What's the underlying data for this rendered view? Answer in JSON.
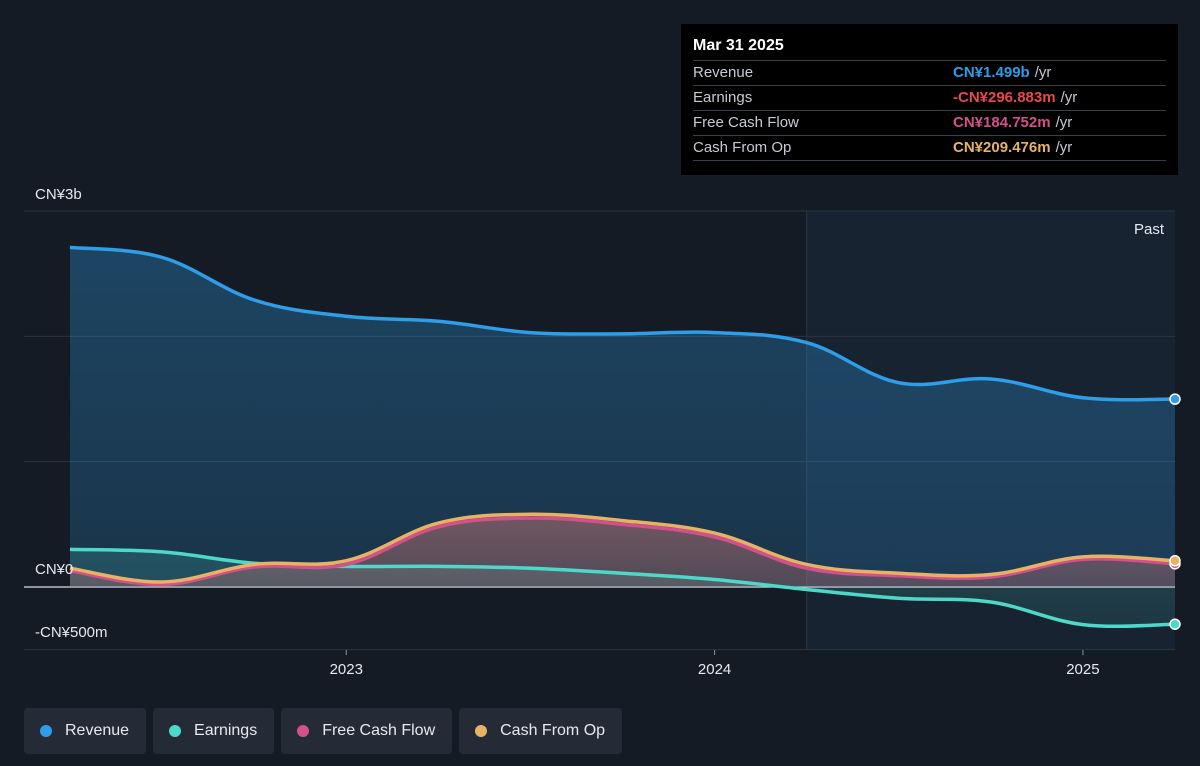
{
  "tooltip": {
    "date": "Mar 31 2025",
    "rows": [
      {
        "label": "Revenue",
        "value": "CN¥1.499b",
        "unit": "/yr",
        "color": "#2e9ee8"
      },
      {
        "label": "Earnings",
        "value": "-CN¥296.883m",
        "unit": "/yr",
        "color": "#e84a4a"
      },
      {
        "label": "Free Cash Flow",
        "value": "CN¥184.752m",
        "unit": "/yr",
        "color": "#d4508a"
      },
      {
        "label": "Cash From Op",
        "value": "CN¥209.476m",
        "unit": "/yr",
        "color": "#e8b265"
      }
    ]
  },
  "legend": [
    {
      "label": "Revenue",
      "color": "#2e9ee8"
    },
    {
      "label": "Earnings",
      "color": "#4dd9c8"
    },
    {
      "label": "Free Cash Flow",
      "color": "#d4508a"
    },
    {
      "label": "Cash From Op",
      "color": "#e8b265"
    }
  ],
  "chart_data": {
    "type": "area",
    "y_tick_labels": [
      "CN¥3b",
      "CN¥0",
      "-CN¥500m"
    ],
    "ylim": [
      -500,
      3000
    ],
    "y_gridlines": [
      -500,
      0,
      1000,
      2000,
      3000
    ],
    "x_tick_labels": [
      "2023",
      "2024",
      "2025"
    ],
    "x_ticks": [
      2023.0,
      2024.0,
      2025.0
    ],
    "xlim": [
      2022.25,
      2025.25
    ],
    "past_label": "Past",
    "past_start": 2024.25,
    "x": [
      2022.25,
      2022.5,
      2022.75,
      2023.0,
      2023.25,
      2023.5,
      2023.75,
      2024.0,
      2024.25,
      2024.5,
      2024.75,
      2025.0,
      2025.25
    ],
    "series": [
      {
        "name": "Revenue",
        "color": "#2e9ee8",
        "values": [
          2710,
          2630,
          2290,
          2160,
          2120,
          2030,
          2020,
          2030,
          1950,
          1630,
          1660,
          1510,
          1499
        ]
      },
      {
        "name": "Earnings",
        "color": "#4dd9c8",
        "values": [
          300,
          280,
          190,
          165,
          165,
          150,
          110,
          60,
          -20,
          -90,
          -120,
          -300,
          -297
        ]
      },
      {
        "name": "Free Cash Flow",
        "color": "#d4508a",
        "values": [
          130,
          20,
          160,
          180,
          480,
          550,
          500,
          400,
          150,
          90,
          80,
          220,
          185
        ]
      },
      {
        "name": "Cash From Op",
        "color": "#e8b265",
        "values": [
          150,
          40,
          180,
          210,
          510,
          580,
          530,
          430,
          180,
          110,
          100,
          240,
          209
        ]
      }
    ]
  }
}
